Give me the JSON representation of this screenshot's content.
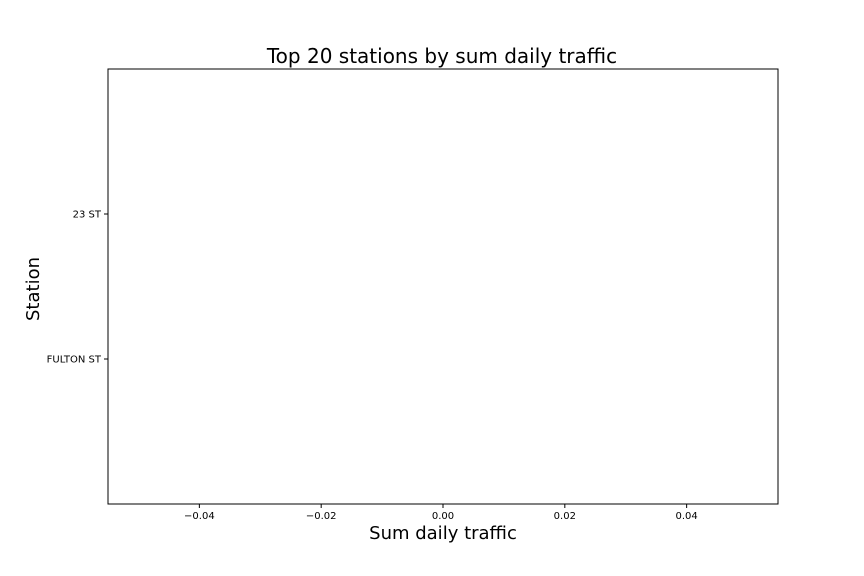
{
  "chart_data": {
    "type": "bar",
    "orientation": "horizontal",
    "title": "Top 20 stations by sum daily traffic",
    "xlabel": "Sum daily traffic",
    "ylabel": "Station",
    "categories": [
      "23 ST",
      "FULTON ST"
    ],
    "values": [
      0,
      0
    ],
    "xlim": [
      -0.055,
      0.055
    ],
    "xticks": [
      -0.04,
      -0.02,
      0.0,
      0.02,
      0.04
    ],
    "xtick_labels": [
      "−0.04",
      "−0.02",
      "0.00",
      "0.02",
      "0.04"
    ],
    "grid": false,
    "legend": "none"
  }
}
